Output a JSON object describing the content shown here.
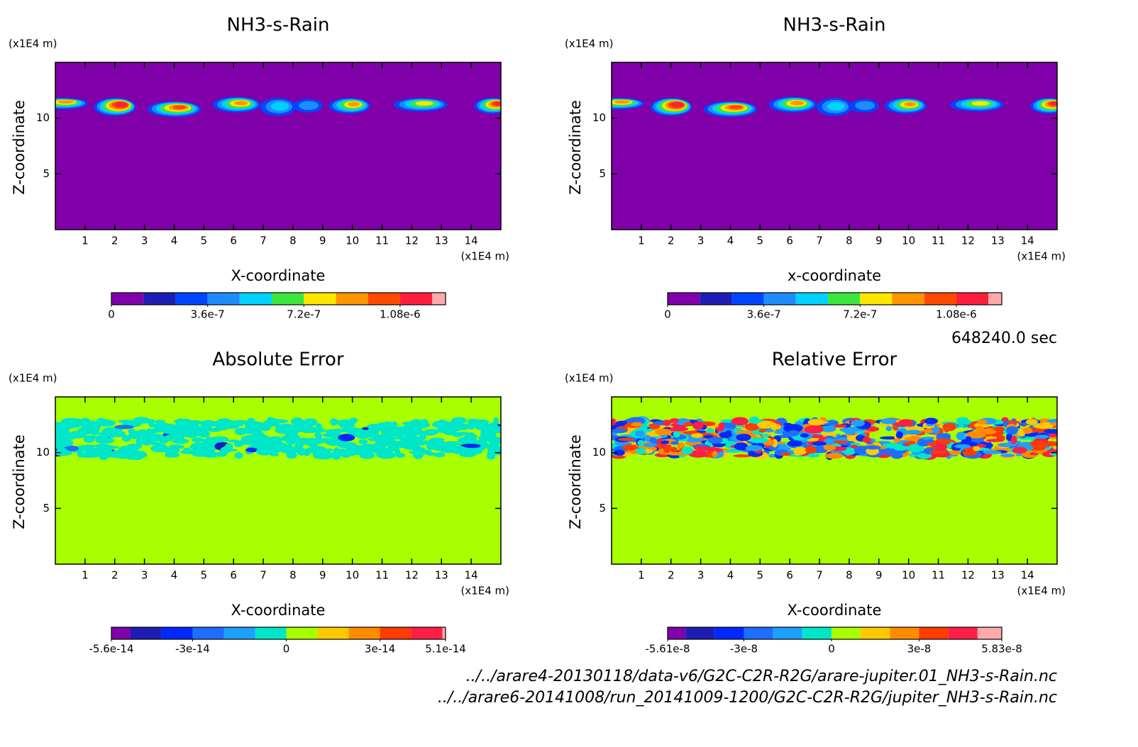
{
  "chart_data": [
    {
      "type": "contour",
      "title": "NH3-s-Rain",
      "xlabel": "X-coordinate",
      "ylabel": "Z-coordinate",
      "xunit": "(x1E4 m)",
      "yunit": "(x1E4 m)",
      "xlim": [
        0,
        15
      ],
      "ylim": [
        0,
        15
      ],
      "xticks": [
        1,
        2,
        3,
        4,
        5,
        6,
        7,
        8,
        9,
        10,
        11,
        12,
        13,
        14
      ],
      "yticks": [
        5,
        10
      ],
      "levels": [
        0,
        1.2e-07,
        2.4e-07,
        3.6e-07,
        4.8e-07,
        6e-07,
        7.2e-07,
        8.4e-07,
        9.6e-07,
        1.08e-06,
        1.2e-06,
        1.25e-06
      ],
      "colors": [
        "#8000aa",
        "#1e1eb4",
        "#0046ff",
        "#1e8cff",
        "#00d2ff",
        "#3ce63c",
        "#ffe600",
        "#ff9600",
        "#ff4b00",
        "#ff1e3c",
        "#ffaaaa"
      ],
      "cticks": [
        0,
        {
          "value": 3.6e-07,
          "label": "3.6e-7"
        },
        {
          "value": 7.2e-07,
          "label": "7.2e-7"
        },
        {
          "value": 1.08e-06,
          "label": "1.08e-6"
        }
      ]
    },
    {
      "type": "contour",
      "title": "NH3-s-Rain",
      "xlabel": "x-coordinate",
      "ylabel": "Z-coordinate",
      "xunit": "(x1E4 m)",
      "yunit": "(x1E4 m)",
      "xlim": [
        0,
        15
      ],
      "ylim": [
        0,
        15
      ],
      "xticks": [
        1,
        2,
        3,
        4,
        5,
        6,
        7,
        8,
        9,
        10,
        11,
        12,
        13,
        14
      ],
      "yticks": [
        5,
        10
      ],
      "levels": [
        0,
        1.2e-07,
        2.4e-07,
        3.6e-07,
        4.8e-07,
        6e-07,
        7.2e-07,
        8.4e-07,
        9.6e-07,
        1.08e-06,
        1.2e-06,
        1.25e-06
      ],
      "colors": [
        "#8000aa",
        "#1e1eb4",
        "#0046ff",
        "#1e8cff",
        "#00d2ff",
        "#3ce63c",
        "#ffe600",
        "#ff9600",
        "#ff4b00",
        "#ff1e3c",
        "#ffaaaa"
      ],
      "cticks": [
        0,
        {
          "value": 3.6e-07,
          "label": "3.6e-7"
        },
        {
          "value": 7.2e-07,
          "label": "7.2e-7"
        },
        {
          "value": 1.08e-06,
          "label": "1.08e-6"
        }
      ]
    },
    {
      "type": "contour",
      "title": "Absolute Error",
      "xlabel": "X-coordinate",
      "ylabel": "Z-coordinate",
      "xunit": "(x1E4 m)",
      "yunit": "(x1E4 m)",
      "xlim": [
        0,
        15
      ],
      "ylim": [
        0,
        15
      ],
      "xticks": [
        1,
        2,
        3,
        4,
        5,
        6,
        7,
        8,
        9,
        10,
        11,
        12,
        13,
        14
      ],
      "yticks": [
        5,
        10
      ],
      "levels": [
        -5.6e-14,
        -5e-14,
        -4e-14,
        -3e-14,
        -2e-14,
        -1e-14,
        0,
        1e-14,
        2e-14,
        3e-14,
        4e-14,
        5e-14,
        5.1e-14
      ],
      "colors": [
        "#8000aa",
        "#1e1eb4",
        "#0028ff",
        "#1e6eff",
        "#1ea0ff",
        "#00e6c8",
        "#a8ff00",
        "#ffc800",
        "#ff8c00",
        "#ff3c00",
        "#ff1e46",
        "#ffaaaa"
      ],
      "cticks": [
        {
          "value": -5.6e-14,
          "label": "-5.6e-14"
        },
        {
          "value": -3e-14,
          "label": "-3e-14"
        },
        0,
        {
          "value": 3e-14,
          "label": "3e-14"
        },
        {
          "value": 5.1e-14,
          "label": "5.1e-14"
        }
      ]
    },
    {
      "type": "contour",
      "title": "Relative Error",
      "xlabel": "X-coordinate",
      "ylabel": "Z-coordinate",
      "xunit": "(x1E4 m)",
      "yunit": "(x1E4 m)",
      "xlim": [
        0,
        15
      ],
      "ylim": [
        0,
        15
      ],
      "xticks": [
        1,
        2,
        3,
        4,
        5,
        6,
        7,
        8,
        9,
        10,
        11,
        12,
        13,
        14
      ],
      "yticks": [
        5,
        10
      ],
      "levels": [
        -5.61e-08,
        -5e-08,
        -4e-08,
        -3e-08,
        -2e-08,
        -1e-08,
        0,
        1e-08,
        2e-08,
        3e-08,
        4e-08,
        5e-08,
        5.83e-08
      ],
      "colors": [
        "#8000aa",
        "#1e1eb4",
        "#0028ff",
        "#1e6eff",
        "#1ea0ff",
        "#00e6c8",
        "#a8ff00",
        "#ffc800",
        "#ff8c00",
        "#ff3c00",
        "#ff1e46",
        "#ffaaaa"
      ],
      "cticks": [
        {
          "value": -5.61e-08,
          "label": "-5.61e-8"
        },
        {
          "value": -3e-08,
          "label": "-3e-8"
        },
        0,
        {
          "value": 3e-08,
          "label": "3e-8"
        },
        {
          "value": 5.83e-08,
          "label": "5.83e-8"
        }
      ]
    }
  ],
  "footer": {
    "time": "648240.0 sec",
    "files": [
      "../../arare4-20130118/data-v6/G2C-C2R-R2G/arare-jupiter.01_NH3-s-Rain.nc",
      "../../arare6-20141008/run_20141009-1200/G2C-C2R-R2G/jupiter_NH3-s-Rain.nc"
    ]
  }
}
